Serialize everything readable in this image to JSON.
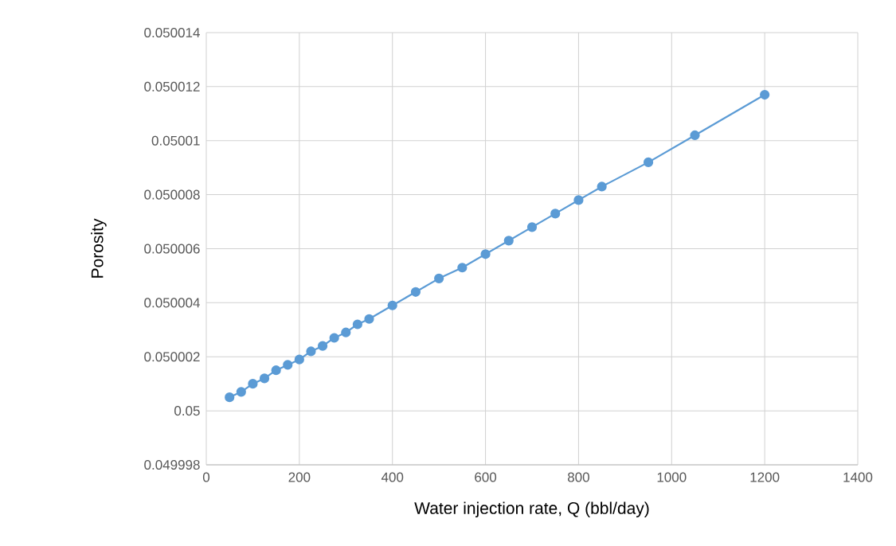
{
  "chart_data": {
    "type": "line",
    "xlabel": "Water injection rate, Q (bbl/day)",
    "ylabel": "Porosity",
    "x": [
      50,
      75,
      100,
      125,
      150,
      175,
      200,
      225,
      250,
      275,
      300,
      325,
      350,
      400,
      450,
      500,
      550,
      600,
      650,
      700,
      750,
      800,
      850,
      950,
      1050,
      1200
    ],
    "series": [
      {
        "color": "#5b9bd5",
        "values": [
          0.0500005,
          0.0500007,
          0.050001,
          0.0500012,
          0.0500015,
          0.0500017,
          0.0500019,
          0.0500022,
          0.0500024,
          0.0500027,
          0.0500029,
          0.0500032,
          0.0500034,
          0.0500039,
          0.0500044,
          0.0500049,
          0.0500053,
          0.0500058,
          0.0500063,
          0.0500068,
          0.0500073,
          0.0500078,
          0.0500083,
          0.0500092,
          0.0500102,
          0.0500117
        ]
      }
    ],
    "xlim": [
      0,
      1400
    ],
    "xticks": [
      0,
      200,
      400,
      600,
      800,
      1000,
      1200,
      1400
    ],
    "ylim": [
      0.049998,
      0.050014
    ],
    "yticks": [
      0.049998,
      0.05,
      0.050002,
      0.050004,
      0.050006,
      0.050008,
      0.05001,
      0.050012,
      0.050014
    ],
    "grid": true,
    "marker": "circle",
    "line_style": "solid"
  }
}
